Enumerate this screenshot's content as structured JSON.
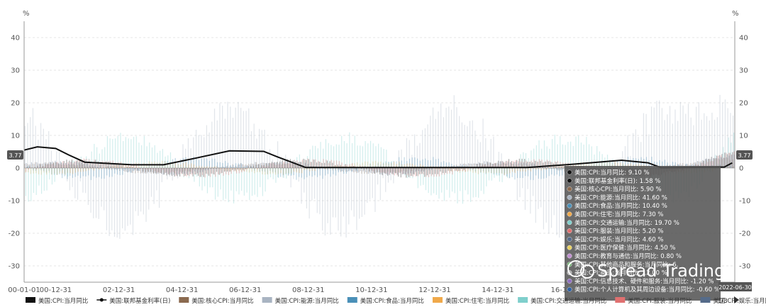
{
  "chart_data": {
    "type": "bar",
    "ylabel_left": "%",
    "ylabel_right": "%",
    "ylim": [
      -35,
      45
    ],
    "yticks": [
      40,
      30,
      20,
      10,
      0,
      -10,
      -20,
      -30
    ],
    "x_tick_labels": [
      "00-01-01",
      "00-12-31",
      "02-12-31",
      "04-12-31",
      "06-12-31",
      "08-12-31",
      "10-12-31",
      "12-12-31",
      "14-12-31",
      "16-12"
    ],
    "x_end_label": "2022-06-30",
    "y_marker_left": "3.77",
    "y_marker_right": "3.77",
    "grid": true,
    "legend_position": "bottom",
    "legend_page": "1/3",
    "watermark": "Spread Trading",
    "series": [
      {
        "name": "美国:CPI:当月同比",
        "color": "#111111",
        "style": "bar"
      },
      {
        "name": "美国:联邦基金利率(日)",
        "color": "#111111",
        "style": "line"
      },
      {
        "name": "美国:核心CPI:当月同比",
        "color": "#8b6a4f",
        "style": "bar"
      },
      {
        "name": "美国:CPI:能源:当月同比",
        "color": "#a9b4c2",
        "style": "bar"
      },
      {
        "name": "美国:CPI:食品:当月同比",
        "color": "#4a90b8",
        "style": "bar"
      },
      {
        "name": "美国:CPI:住宅:当月同比",
        "color": "#f0a94a",
        "style": "bar"
      },
      {
        "name": "美国:CPI:交通运输:当月同比",
        "color": "#7fcfcc",
        "style": "bar"
      },
      {
        "name": "美国:CPI:服装:当月同比",
        "color": "#e07070",
        "style": "bar"
      },
      {
        "name": "美国:CPI:娱乐:当月同比",
        "color": "#556b8a",
        "style": "bar"
      }
    ],
    "fed_funds_keypoints": [
      {
        "x": "2000-01",
        "y": 5.5
      },
      {
        "x": "2000-06",
        "y": 6.5
      },
      {
        "x": "2001-01",
        "y": 6.0
      },
      {
        "x": "2001-06",
        "y": 4.0
      },
      {
        "x": "2001-12",
        "y": 1.8
      },
      {
        "x": "2003-06",
        "y": 1.0
      },
      {
        "x": "2004-06",
        "y": 1.0
      },
      {
        "x": "2005-06",
        "y": 3.0
      },
      {
        "x": "2006-07",
        "y": 5.25
      },
      {
        "x": "2007-08",
        "y": 5.1
      },
      {
        "x": "2008-01",
        "y": 3.5
      },
      {
        "x": "2008-12",
        "y": 0.15
      },
      {
        "x": "2015-12",
        "y": 0.15
      },
      {
        "x": "2017-06",
        "y": 1.2
      },
      {
        "x": "2018-12",
        "y": 2.4
      },
      {
        "x": "2019-10",
        "y": 1.6
      },
      {
        "x": "2020-03",
        "y": 0.1
      },
      {
        "x": "2022-03",
        "y": 0.3
      },
      {
        "x": "2022-06",
        "y": 1.58
      }
    ],
    "tooltip": {
      "rows": [
        {
          "label": "美国:CPI:当月同比: 9.10  %",
          "color": "#111111"
        },
        {
          "label": "美国:联邦基金利率(日): 1.58  %",
          "color": "#111111"
        },
        {
          "label": "美国:核心CPI:当月同比: 5.90  %",
          "color": "#8b6a4f"
        },
        {
          "label": "美国:CPI:能源:当月同比: 41.60  %",
          "color": "#a9b4c2"
        },
        {
          "label": "美国:CPI:食品:当月同比: 10.40  %",
          "color": "#4a90b8"
        },
        {
          "label": "美国:CPI:住宅:当月同比: 7.30  %",
          "color": "#f0a94a"
        },
        {
          "label": "美国:CPI:交通运输:当月同比: 19.70  %",
          "color": "#7fcfcc"
        },
        {
          "label": "美国:CPI:服装:当月同比: 5.20  %",
          "color": "#e07070"
        },
        {
          "label": "美国:CPI:娱乐:当月同比: 4.60  %",
          "color": "#556b8a"
        },
        {
          "label": "美国:CPI:医疗保健:当月同比: 4.50  %",
          "color": "#e8d060"
        },
        {
          "label": "美国:CPI:教育与通信:当月同比: 0.80  %",
          "color": "#c090d0"
        },
        {
          "label": "美国:CPI:其他商品和服务:当月同比: 6.",
          "color": "#70b070"
        },
        {
          "label": "美国:CPI:商品:当月同比: 12.00  %",
          "color": "#b0b0b0"
        },
        {
          "label": "美国:CPI:信息技术、硬件和服务:当月同比: -1.20  %",
          "color": "#9070c0"
        },
        {
          "label": "美国:CPI:个人计算机及其周边设备:当月同比: -0.60  %",
          "color": "#3060a0"
        }
      ]
    }
  }
}
